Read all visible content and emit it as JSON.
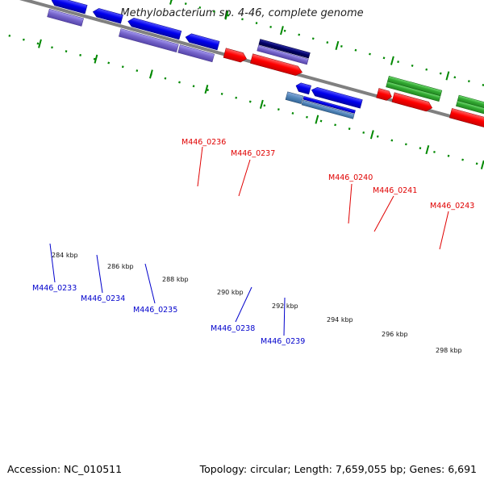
{
  "title": "Methylobacterium sp. 4-46, complete genome",
  "footer": {
    "accession": "Accession: NC_010511",
    "summary": "Topology: circular; Length: 7,659,055 bp; Genes: 6,691"
  },
  "ticks": [
    {
      "label": "284 kbp"
    },
    {
      "label": "286 kbp"
    },
    {
      "label": "288 kbp"
    },
    {
      "label": "290 kbp"
    },
    {
      "label": "292 kbp"
    },
    {
      "label": "294 kbp"
    },
    {
      "label": "296 kbp"
    },
    {
      "label": "298 kbp"
    }
  ],
  "genes_top": [
    {
      "label": "M446_0236",
      "color": "#e00000"
    },
    {
      "label": "M446_0237",
      "color": "#e00000"
    },
    {
      "label": "M446_0240",
      "color": "#e00000"
    },
    {
      "label": "M446_0241",
      "color": "#e00000"
    },
    {
      "label": "M446_0243",
      "color": "#e00000"
    }
  ],
  "genes_bottom": [
    {
      "label": "M446_0233",
      "color": "#0000cc"
    },
    {
      "label": "M446_0234",
      "color": "#0000cc"
    },
    {
      "label": "M446_0235",
      "color": "#0000cc"
    },
    {
      "label": "M446_0238",
      "color": "#0000cc"
    },
    {
      "label": "M446_0239",
      "color": "#0000cc"
    }
  ],
  "colors": {
    "backbone": "#808080",
    "tick_green": "#008800",
    "forward_red": "#ff0000",
    "reverse_blue": "#0000ee",
    "purple": "#7766cc",
    "green_gene": "#33aa33",
    "steel_blue": "#5588bb",
    "navy": "#000066"
  }
}
